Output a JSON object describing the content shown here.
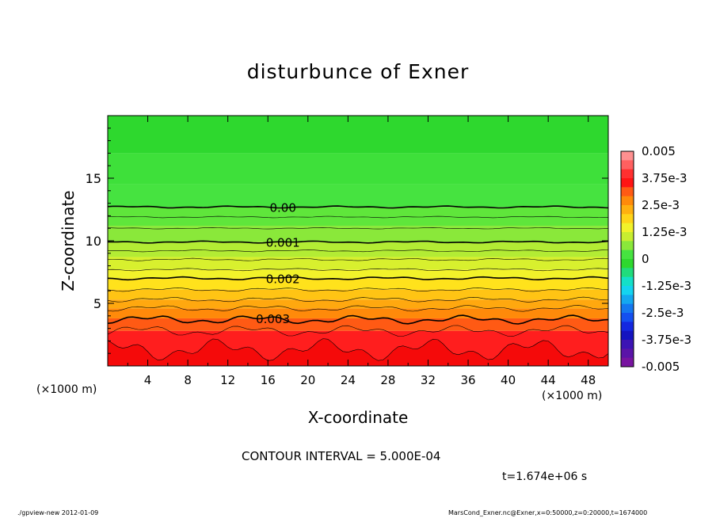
{
  "chart_data": {
    "type": "heatmap",
    "title": "disturbunce of Exner",
    "xlabel": "X-coordinate",
    "ylabel": "Z-coordinate",
    "x_unit": "(×1000 m)",
    "xlim": [
      0,
      50
    ],
    "ylim": [
      0,
      20
    ],
    "x_ticks": [
      4,
      8,
      12,
      16,
      20,
      24,
      28,
      32,
      36,
      40,
      44,
      48
    ],
    "y_ticks": [
      5,
      10,
      15
    ],
    "colorbar": {
      "range": [
        -0.005,
        0.005
      ],
      "labels": [
        "0.005",
        "3.75e-3",
        "2.5e-3",
        "1.25e-3",
        "0",
        "-1.25e-3",
        "-2.5e-3",
        "-3.75e-3",
        "-0.005"
      ]
    },
    "contour_labels": [
      {
        "text": "0.00",
        "x": 17.5,
        "z": 12.7
      },
      {
        "text": "0.001",
        "x": 17.5,
        "z": 9.9
      },
      {
        "text": "0.002",
        "x": 17.5,
        "z": 7.0
      },
      {
        "text": "0.003",
        "x": 16.5,
        "z": 3.8
      }
    ],
    "contour_interval": "CONTOUR INTERVAL = 5.000E-04",
    "time": "t=1.674e+06 s"
  },
  "colors": {
    "plot_green": "#2ed82e",
    "plot_red": "#ff1e1e"
  },
  "footer": {
    "left": "./gpview-new   2012-01-09",
    "right": "MarsCond_Exner.nc@Exner,x=0:50000,z=0:20000,t=1674000"
  }
}
